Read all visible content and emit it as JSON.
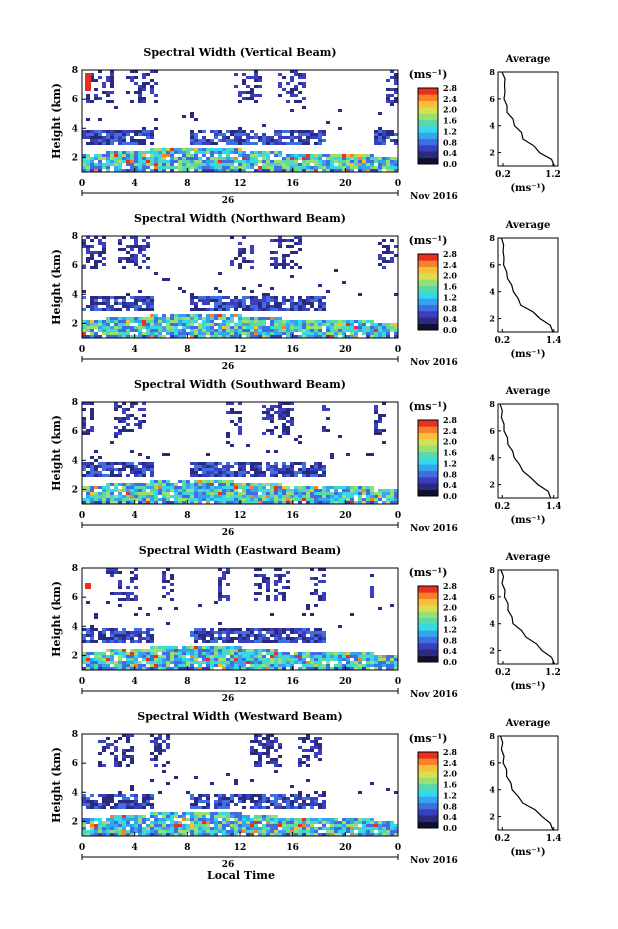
{
  "figure": {
    "date_label": "Nov 2016",
    "bottom_xlabel": "Local Time",
    "colors": {
      "colormap": [
        "#101030",
        "#2a2a80",
        "#3a3fc0",
        "#3f6ee0",
        "#35a4f0",
        "#35d8e8",
        "#5ad8a8",
        "#9ae070",
        "#d8e050",
        "#f8c038",
        "#f88028",
        "#e83020"
      ],
      "avg_line": "#000000"
    }
  },
  "chart_data": [
    {
      "type": "heatmap",
      "title": "Spectral Width (Vertical Beam)",
      "ylabel": "Height (km)",
      "ylim": [
        1,
        8
      ],
      "yticks": [
        2,
        4,
        6,
        8
      ],
      "xticks": [
        "0",
        "4",
        "8",
        "12",
        "16",
        "20",
        "0"
      ],
      "day_label": "26",
      "colorbar": {
        "unit": "(ms⁻¹)",
        "ticks": [
          "0.0",
          "0.4",
          "0.8",
          "1.2",
          "1.6",
          "2.0",
          "2.4",
          "2.8"
        ]
      },
      "average": {
        "title": "Average",
        "xlabel": "(ms⁻¹)",
        "xticks": [
          "0.2",
          "1.2"
        ],
        "xlim": [
          0.1,
          1.3
        ],
        "height": [
          1.0,
          1.5,
          2.0,
          2.5,
          3.0,
          3.5,
          4.0,
          4.5,
          5.0,
          5.5,
          6.0,
          6.5,
          7.0,
          7.5,
          8.0
        ],
        "value": [
          1.25,
          1.15,
          0.95,
          0.8,
          0.62,
          0.55,
          0.45,
          0.38,
          0.3,
          0.26,
          0.24,
          0.22,
          0.25,
          0.22,
          0.2
        ]
      }
    },
    {
      "type": "heatmap",
      "title": "Spectral Width (Northward Beam)",
      "ylabel": "Height (km)",
      "ylim": [
        1,
        8
      ],
      "yticks": [
        2,
        4,
        6,
        8
      ],
      "xticks": [
        "0",
        "4",
        "8",
        "12",
        "16",
        "20",
        "0"
      ],
      "day_label": "26",
      "colorbar": {
        "unit": "(ms⁻¹)",
        "ticks": [
          "0.0",
          "0.4",
          "0.8",
          "1.2",
          "1.6",
          "2.0",
          "2.4",
          "2.8"
        ]
      },
      "average": {
        "title": "Average",
        "xlabel": "(ms⁻¹)",
        "xticks": [
          "0.2",
          "1.4"
        ],
        "xlim": [
          0.1,
          1.5
        ],
        "height": [
          1.0,
          1.5,
          2.0,
          2.5,
          3.0,
          3.5,
          4.0,
          4.5,
          5.0,
          5.5,
          6.0,
          6.5,
          7.0,
          7.5,
          8.0
        ],
        "value": [
          1.4,
          1.3,
          1.1,
          0.9,
          0.65,
          0.55,
          0.48,
          0.4,
          0.34,
          0.28,
          0.25,
          0.22,
          0.24,
          0.21,
          0.2
        ]
      }
    },
    {
      "type": "heatmap",
      "title": "Spectral Width (Southward Beam)",
      "ylabel": "Height (km)",
      "ylim": [
        1,
        8
      ],
      "yticks": [
        2,
        4,
        6,
        8
      ],
      "xticks": [
        "0",
        "4",
        "8",
        "12",
        "16",
        "20",
        "0"
      ],
      "day_label": "26",
      "colorbar": {
        "unit": "(ms⁻¹)",
        "ticks": [
          "0.0",
          "0.4",
          "0.8",
          "1.2",
          "1.6",
          "2.0",
          "2.4",
          "2.8"
        ]
      },
      "average": {
        "title": "Average",
        "xlabel": "(ms⁻¹)",
        "xticks": [
          "0.2",
          "1.4"
        ],
        "xlim": [
          0.1,
          1.5
        ],
        "height": [
          1.0,
          1.5,
          2.0,
          2.5,
          3.0,
          3.5,
          4.0,
          4.5,
          5.0,
          5.5,
          6.0,
          6.5,
          7.0,
          7.5,
          8.0
        ],
        "value": [
          1.35,
          1.25,
          1.05,
          0.85,
          0.7,
          0.58,
          0.5,
          0.42,
          0.35,
          0.3,
          0.26,
          0.22,
          0.2,
          0.18,
          0.17
        ]
      }
    },
    {
      "type": "heatmap",
      "title": "Spectral Width (Eastward Beam)",
      "ylabel": "Height (km)",
      "ylim": [
        1,
        8
      ],
      "yticks": [
        2,
        4,
        6,
        8
      ],
      "xticks": [
        "0",
        "4",
        "8",
        "12",
        "16",
        "20",
        "0"
      ],
      "day_label": "26",
      "colorbar": {
        "unit": "(ms⁻¹)",
        "ticks": [
          "0.0",
          "0.4",
          "0.8",
          "1.2",
          "1.6",
          "2.0",
          "2.4",
          "2.8"
        ]
      },
      "average": {
        "title": "Average",
        "xlabel": "(ms⁻¹)",
        "xticks": [
          "0.2",
          "1.2"
        ],
        "xlim": [
          0.1,
          1.3
        ],
        "height": [
          1.0,
          1.5,
          2.0,
          2.5,
          3.0,
          3.5,
          4.0,
          4.5,
          5.0,
          5.5,
          6.0,
          6.5,
          7.0,
          7.5,
          8.0
        ],
        "value": [
          1.25,
          1.15,
          1.0,
          0.85,
          0.68,
          0.55,
          0.42,
          0.36,
          0.32,
          0.28,
          0.25,
          0.22,
          0.2,
          0.19,
          0.18
        ]
      }
    },
    {
      "type": "heatmap",
      "title": "Spectral Width (Westward Beam)",
      "ylabel": "Height (km)",
      "ylim": [
        1,
        8
      ],
      "yticks": [
        2,
        4,
        6,
        8
      ],
      "xticks": [
        "0",
        "4",
        "8",
        "12",
        "16",
        "20",
        "0"
      ],
      "day_label": "26",
      "colorbar": {
        "unit": "(ms⁻¹)",
        "ticks": [
          "0.0",
          "0.4",
          "0.8",
          "1.2",
          "1.6",
          "2.0",
          "2.4",
          "2.8"
        ]
      },
      "average": {
        "title": "Average",
        "xlabel": "(ms⁻¹)",
        "xticks": [
          "0.2",
          "1.4"
        ],
        "xlim": [
          0.1,
          1.5
        ],
        "height": [
          1.0,
          1.5,
          2.0,
          2.5,
          3.0,
          3.5,
          4.0,
          4.5,
          5.0,
          5.5,
          6.0,
          6.5,
          7.0,
          7.5,
          8.0
        ],
        "value": [
          1.4,
          1.3,
          1.15,
          0.95,
          0.7,
          0.55,
          0.45,
          0.38,
          0.32,
          0.28,
          0.24,
          0.22,
          0.2,
          0.19,
          0.18
        ]
      }
    }
  ]
}
